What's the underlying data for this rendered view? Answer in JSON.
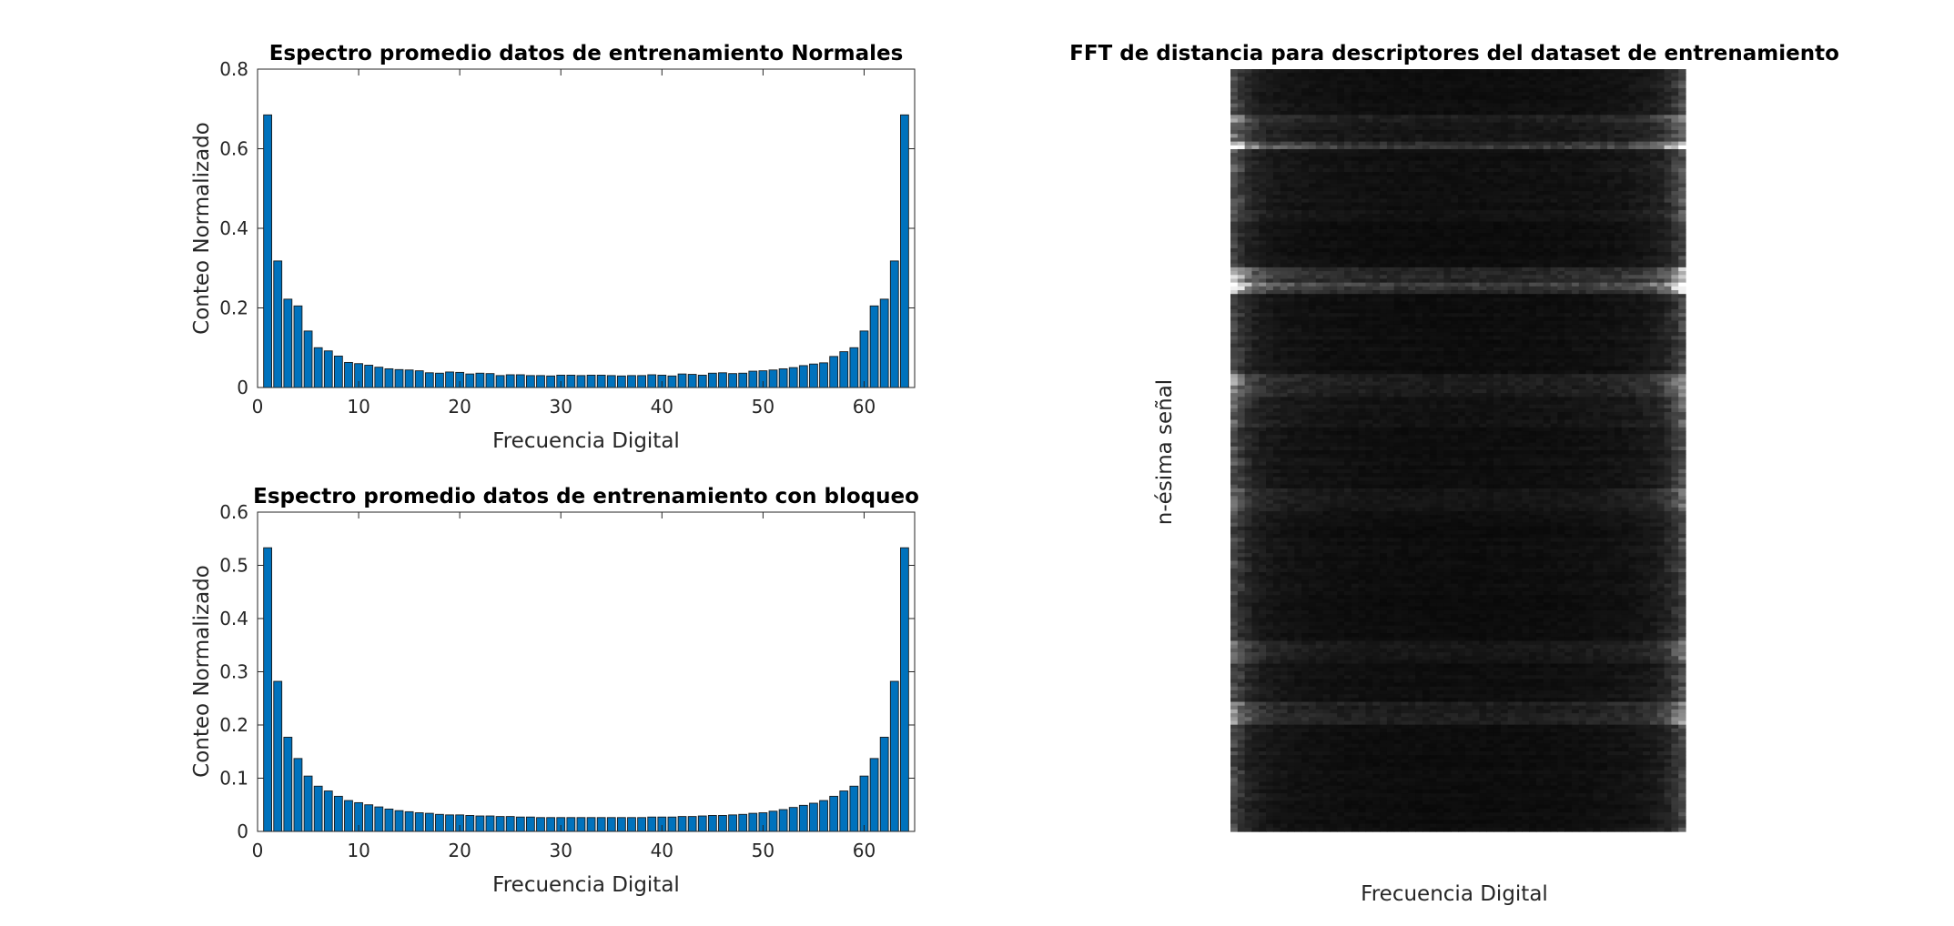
{
  "chart_data": [
    {
      "type": "bar",
      "title": "Espectro promedio datos de entrenamiento Normales",
      "xlabel": "Frecuencia Digital",
      "ylabel": "Conteo Normalizado",
      "xlim": [
        0,
        65
      ],
      "ylim": [
        0,
        0.8
      ],
      "xticks": [
        "0",
        "10",
        "20",
        "30",
        "40",
        "50",
        "60"
      ],
      "yticks": [
        "0",
        "0.2",
        "0.4",
        "0.6",
        "0.8"
      ],
      "bar_color": "#0072BD",
      "x": [
        1,
        2,
        3,
        4,
        5,
        6,
        7,
        8,
        9,
        10,
        11,
        12,
        13,
        14,
        15,
        16,
        17,
        18,
        19,
        20,
        21,
        22,
        23,
        24,
        25,
        26,
        27,
        28,
        29,
        30,
        31,
        32,
        33,
        34,
        35,
        36,
        37,
        38,
        39,
        40,
        41,
        42,
        43,
        44,
        45,
        46,
        47,
        48,
        49,
        50,
        51,
        52,
        53,
        54,
        55,
        56,
        57,
        58,
        59,
        60,
        61,
        62,
        63,
        64
      ],
      "values": [
        0.685,
        0.318,
        0.222,
        0.205,
        0.142,
        0.1,
        0.092,
        0.079,
        0.063,
        0.06,
        0.056,
        0.051,
        0.047,
        0.045,
        0.044,
        0.042,
        0.037,
        0.036,
        0.039,
        0.038,
        0.034,
        0.036,
        0.035,
        0.03,
        0.032,
        0.032,
        0.03,
        0.03,
        0.029,
        0.031,
        0.031,
        0.03,
        0.031,
        0.031,
        0.03,
        0.029,
        0.03,
        0.03,
        0.032,
        0.031,
        0.029,
        0.034,
        0.033,
        0.031,
        0.036,
        0.037,
        0.035,
        0.036,
        0.041,
        0.042,
        0.044,
        0.047,
        0.05,
        0.055,
        0.059,
        0.062,
        0.078,
        0.09,
        0.1,
        0.142,
        0.205,
        0.222,
        0.318,
        0.685
      ]
    },
    {
      "type": "bar",
      "title": "Espectro promedio datos de entrenamiento con bloqueo",
      "xlabel": "Frecuencia Digital",
      "ylabel": "Conteo Normalizado",
      "xlim": [
        0,
        65
      ],
      "ylim": [
        0,
        0.6
      ],
      "xticks": [
        "0",
        "10",
        "20",
        "30",
        "40",
        "50",
        "60"
      ],
      "yticks": [
        "0",
        "0.1",
        "0.2",
        "0.3",
        "0.4",
        "0.5",
        "0.6"
      ],
      "bar_color": "#0072BD",
      "x": [
        1,
        2,
        3,
        4,
        5,
        6,
        7,
        8,
        9,
        10,
        11,
        12,
        13,
        14,
        15,
        16,
        17,
        18,
        19,
        20,
        21,
        22,
        23,
        24,
        25,
        26,
        27,
        28,
        29,
        30,
        31,
        32,
        33,
        34,
        35,
        36,
        37,
        38,
        39,
        40,
        41,
        42,
        43,
        44,
        45,
        46,
        47,
        48,
        49,
        50,
        51,
        52,
        53,
        54,
        55,
        56,
        57,
        58,
        59,
        60,
        61,
        62,
        63,
        64
      ],
      "values": [
        0.533,
        0.282,
        0.177,
        0.137,
        0.104,
        0.085,
        0.076,
        0.066,
        0.058,
        0.054,
        0.05,
        0.046,
        0.042,
        0.039,
        0.037,
        0.035,
        0.034,
        0.032,
        0.031,
        0.031,
        0.03,
        0.029,
        0.029,
        0.028,
        0.028,
        0.027,
        0.027,
        0.026,
        0.026,
        0.026,
        0.026,
        0.026,
        0.026,
        0.026,
        0.026,
        0.026,
        0.026,
        0.026,
        0.027,
        0.027,
        0.027,
        0.028,
        0.028,
        0.029,
        0.03,
        0.03,
        0.031,
        0.032,
        0.034,
        0.035,
        0.038,
        0.041,
        0.045,
        0.049,
        0.053,
        0.058,
        0.066,
        0.076,
        0.085,
        0.104,
        0.137,
        0.177,
        0.282,
        0.533
      ]
    },
    {
      "type": "heatmap",
      "title": "FFT de distancia para descriptores del dataset de entrenamiento",
      "xlabel": "Frecuencia Digital",
      "ylabel": "n-ésima señal",
      "colormap": "gray",
      "columns": 64,
      "rows": 200,
      "column_profile": [
        0.3,
        0.22,
        0.16,
        0.13,
        0.11,
        0.1,
        0.09,
        0.085,
        0.08,
        0.078,
        0.075,
        0.072,
        0.07,
        0.068,
        0.066,
        0.065,
        0.064,
        0.063,
        0.062,
        0.061,
        0.06,
        0.06,
        0.059,
        0.059,
        0.058,
        0.058,
        0.058,
        0.057,
        0.057,
        0.057,
        0.057,
        0.057,
        0.057,
        0.057,
        0.057,
        0.057,
        0.057,
        0.058,
        0.058,
        0.058,
        0.059,
        0.059,
        0.06,
        0.06,
        0.061,
        0.062,
        0.063,
        0.064,
        0.065,
        0.066,
        0.068,
        0.07,
        0.072,
        0.075,
        0.078,
        0.08,
        0.085,
        0.09,
        0.1,
        0.11,
        0.13,
        0.16,
        0.22,
        0.3
      ],
      "row_gain": [
        {
          "rows": [
            0,
            12
          ],
          "gain": 0.95
        },
        {
          "rows": [
            12,
            14
          ],
          "gain": 2.2
        },
        {
          "rows": [
            14,
            19
          ],
          "gain": 1.5
        },
        {
          "rows": [
            19,
            21
          ],
          "gain": 3.5
        },
        {
          "rows": [
            21,
            40
          ],
          "gain": 1.1
        },
        {
          "rows": [
            40,
            52
          ],
          "gain": 0.85
        },
        {
          "rows": [
            52,
            56
          ],
          "gain": 2.5
        },
        {
          "rows": [
            56,
            57
          ],
          "gain": 4.2
        },
        {
          "rows": [
            57,
            59
          ],
          "gain": 3.0
        },
        {
          "rows": [
            59,
            80
          ],
          "gain": 0.95
        },
        {
          "rows": [
            80,
            86
          ],
          "gain": 1.9
        },
        {
          "rows": [
            86,
            94
          ],
          "gain": 1.2
        },
        {
          "rows": [
            94,
            110
          ],
          "gain": 1.0
        },
        {
          "rows": [
            110,
            116
          ],
          "gain": 1.5
        },
        {
          "rows": [
            116,
            150
          ],
          "gain": 0.9
        },
        {
          "rows": [
            150,
            156
          ],
          "gain": 1.5
        },
        {
          "rows": [
            156,
            166
          ],
          "gain": 1.0
        },
        {
          "rows": [
            166,
            172
          ],
          "gain": 2.0
        },
        {
          "rows": [
            172,
            200
          ],
          "gain": 0.9
        }
      ]
    }
  ]
}
